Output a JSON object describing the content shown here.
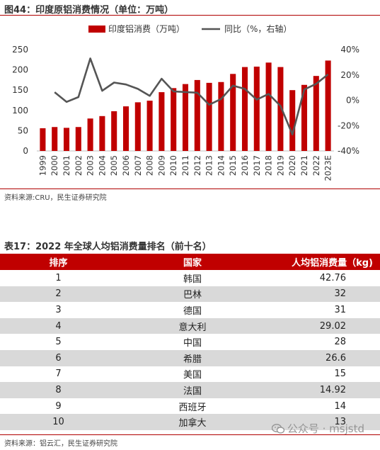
{
  "figure": {
    "title": "图44：印度原铝消费情况（单位：万吨）",
    "source": "资料来源:CRU，民生证券研究院"
  },
  "chart_data": {
    "type": "bar",
    "categories": [
      "1999",
      "2000",
      "2001",
      "2002",
      "2003",
      "2004",
      "2005",
      "2006",
      "2007",
      "2008",
      "2009",
      "2010",
      "2011",
      "2012",
      "2013",
      "2014",
      "2015",
      "2016",
      "2017",
      "2018",
      "2019",
      "2020",
      "2021",
      "2022",
      "2023E"
    ],
    "series": [
      {
        "name": "印度铝消费（万吨）",
        "type": "bar",
        "axis": "left",
        "color": "#c00000",
        "values": [
          56,
          59,
          57,
          59,
          80,
          86,
          98,
          110,
          120,
          124,
          145,
          155,
          165,
          175,
          168,
          170,
          190,
          207,
          208,
          218,
          207,
          150,
          163,
          185,
          223
        ]
      },
      {
        "name": "同比（%，右轴）",
        "type": "line",
        "axis": "right",
        "color": "#555555",
        "values": [
          null,
          6.4,
          -1.3,
          2.5,
          33,
          7.5,
          14,
          12.5,
          9,
          3.5,
          17,
          7,
          6.5,
          6,
          -3.5,
          1,
          11.5,
          9,
          0.5,
          5,
          -4.5,
          -27,
          8.5,
          13,
          20.5
        ]
      }
    ],
    "ylim_left": [
      0,
      250
    ],
    "yticks_left": [
      "0",
      "50",
      "100",
      "150",
      "200",
      "250"
    ],
    "ylim_right": [
      -40,
      40
    ],
    "yticks_right": [
      "-40%",
      "-20%",
      "0%",
      "20%",
      "40%"
    ],
    "legend_position": "top",
    "grid": false
  },
  "table": {
    "title": "表17：2022 年全球人均铝消费量排名（前十名）",
    "headers": [
      "排序",
      "国家",
      "人均铝消费量（kg)"
    ],
    "rows": [
      [
        "1",
        "韩国",
        "42.76"
      ],
      [
        "2",
        "巴林",
        "32"
      ],
      [
        "3",
        "德国",
        "31"
      ],
      [
        "4",
        "意大利",
        "29.02"
      ],
      [
        "5",
        "中国",
        "28"
      ],
      [
        "6",
        "希腊",
        "26.6"
      ],
      [
        "7",
        "美国",
        "15"
      ],
      [
        "8",
        "法国",
        "14.92"
      ],
      [
        "9",
        "西班牙",
        "14"
      ],
      [
        "10",
        "加拿大",
        "13"
      ]
    ],
    "source": "资料来源：铝云汇，民生证券研究院"
  },
  "watermark": {
    "text": "公众号 · msjstd",
    "icon": "wechat-icon"
  }
}
